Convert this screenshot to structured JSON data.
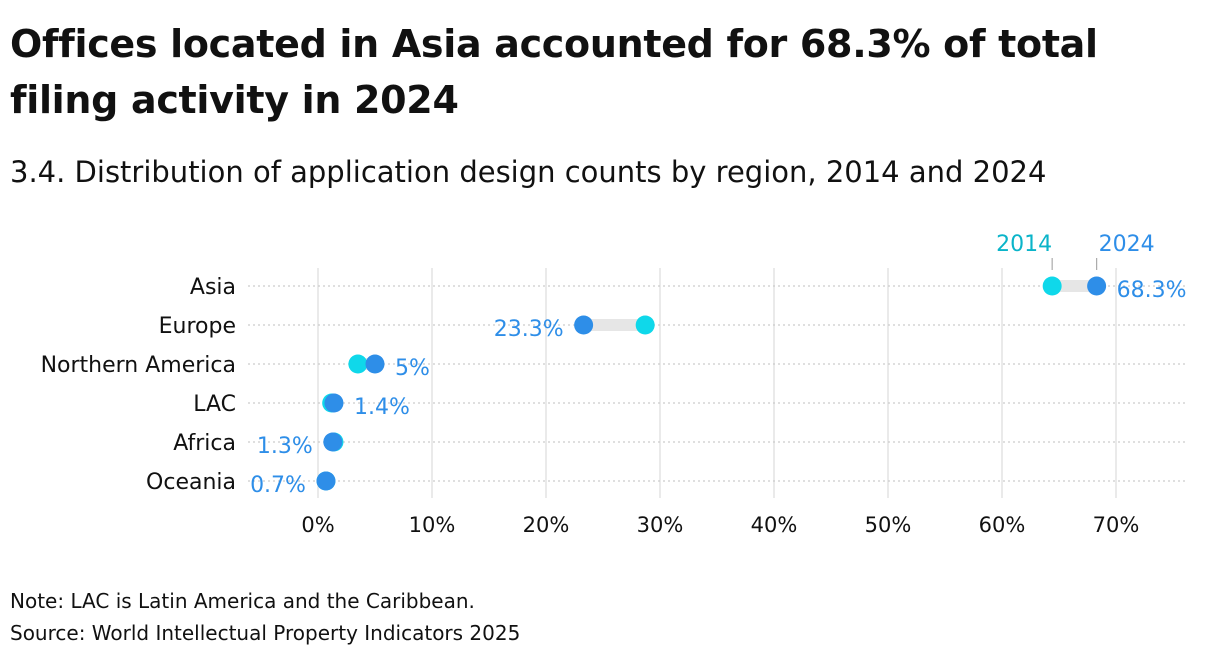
{
  "title": "Offices located in Asia accounted for 68.3% of total filing activity in 2024",
  "subtitle": "3.4. Distribution of application design counts by region, 2014 and 2024",
  "note": "Note: LAC is Latin America and the Caribbean.",
  "source": "Source: World Intellectual Property Indicators 2025",
  "chart_data": {
    "type": "dumbbell",
    "xlim": [
      0,
      76
    ],
    "x_ticks": [
      0,
      10,
      20,
      30,
      40,
      50,
      60,
      70
    ],
    "x_tick_labels": [
      "0%",
      "10%",
      "20%",
      "30%",
      "40%",
      "50%",
      "60%",
      "70%"
    ],
    "grid": true,
    "legend": {
      "placement": "top-right",
      "label_2014": "2014",
      "label_2024": "2024"
    },
    "colors": {
      "y2014": "#0fd8ea",
      "y2024": "#2e8ee8",
      "connector": "#e6e6e6",
      "grid": "#e4e4e4",
      "dotted": "#cccccc"
    },
    "categories": [
      "Asia",
      "Europe",
      "Northern America",
      "LAC",
      "Africa",
      "Oceania"
    ],
    "series": [
      {
        "name": "2014",
        "values": [
          64.4,
          28.7,
          3.5,
          1.2,
          1.4,
          0.7
        ]
      },
      {
        "name": "2024",
        "values": [
          68.3,
          23.3,
          5.0,
          1.4,
          1.3,
          0.7
        ]
      }
    ],
    "data_labels": [
      "68.3%",
      "23.3%",
      "5%",
      "1.4%",
      "1.3%",
      "0.7%"
    ]
  }
}
